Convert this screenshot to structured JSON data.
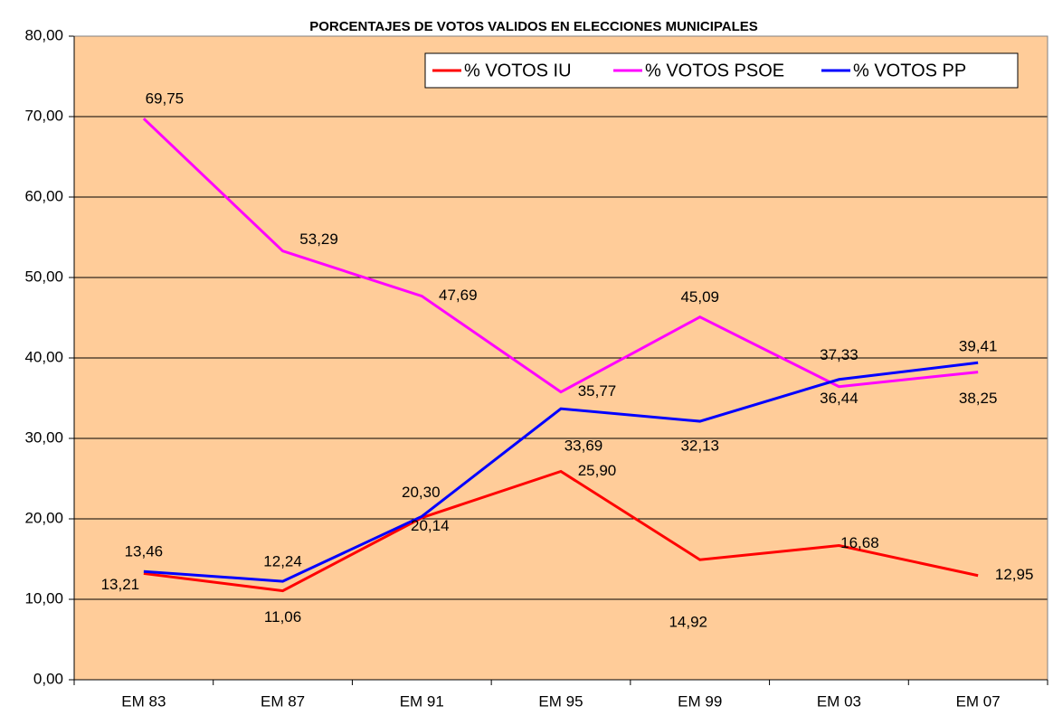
{
  "chart_data": {
    "type": "line",
    "title": "PORCENTAJES DE VOTOS VALIDOS EN ELECCIONES MUNICIPALES",
    "categories": [
      "EM 83",
      "EM 87",
      "EM 91",
      "EM 95",
      "EM 99",
      "EM 03",
      "EM 07"
    ],
    "series": [
      {
        "name": "% VOTOS IU",
        "color": "#ff0000",
        "values": [
          13.21,
          11.06,
          20.14,
          25.9,
          14.92,
          16.68,
          12.95
        ],
        "value_labels": [
          "13,21",
          "11,06",
          "20,14",
          "25,90",
          "14,92",
          "16,68",
          "12,95"
        ]
      },
      {
        "name": "% VOTOS PSOE",
        "color": "#ff00ff",
        "values": [
          69.75,
          53.29,
          47.69,
          35.77,
          45.09,
          36.44,
          38.25
        ],
        "value_labels": [
          "69,75",
          "53,29",
          "47,69",
          "35,77",
          "45,09",
          "36,44",
          "38,25"
        ]
      },
      {
        "name": "% VOTOS PP",
        "color": "#0000ff",
        "values": [
          13.46,
          12.24,
          20.3,
          33.69,
          32.13,
          37.33,
          39.41
        ],
        "value_labels": [
          "13,46",
          "12,24",
          "20,30",
          "33,69",
          "32,13",
          "37,33",
          "39,41"
        ]
      }
    ],
    "ylim": [
      0,
      80
    ],
    "yticks": [
      {
        "value": 0,
        "label": "0,00"
      },
      {
        "value": 10,
        "label": "10,00"
      },
      {
        "value": 20,
        "label": "20,00"
      },
      {
        "value": 30,
        "label": "30,00"
      },
      {
        "value": 40,
        "label": "40,00"
      },
      {
        "value": 50,
        "label": "50,00"
      },
      {
        "value": 60,
        "label": "60,00"
      },
      {
        "value": 70,
        "label": "70,00"
      },
      {
        "value": 80,
        "label": "80,00"
      }
    ],
    "grid": true,
    "legend": "top-right",
    "plot_background": "#ffcc99"
  }
}
